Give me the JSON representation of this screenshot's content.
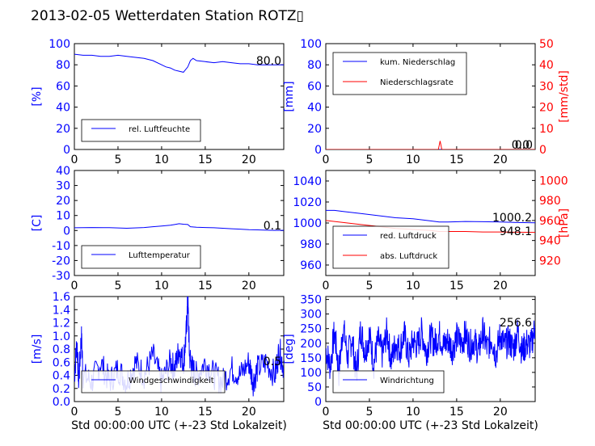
{
  "title": "2013-02-05 Wetterdaten Station ROTZ▯",
  "colors": {
    "blue": "#0000ff",
    "red": "#ff0000",
    "frame": "#000000"
  },
  "chart_data": [
    {
      "type": "line",
      "id": "humidity",
      "ylabel": "[%]",
      "xlim": [
        0,
        24
      ],
      "ylim": [
        0,
        100
      ],
      "xticks": [
        "0",
        "5",
        "10",
        "15",
        "20"
      ],
      "yticks": [
        "0",
        "20",
        "40",
        "60",
        "80",
        "100"
      ],
      "value_box": "80.0",
      "legend": "top-left-inside-bottom",
      "series": [
        {
          "name": "rel. Luftfeuchte",
          "color": "#0000ff",
          "x": [
            0,
            1,
            2,
            3,
            4,
            5,
            6,
            7,
            8,
            9,
            10,
            10.5,
            11,
            11.5,
            12,
            12.5,
            13,
            13.3,
            13.6,
            14,
            15,
            16,
            17,
            18,
            19,
            20,
            21,
            22,
            23,
            24
          ],
          "y": [
            90,
            89,
            89,
            88,
            88,
            89,
            88,
            87,
            86,
            84,
            80,
            78,
            77,
            75,
            74,
            73,
            78,
            84,
            86,
            84,
            83,
            82,
            83,
            82,
            81,
            81,
            80,
            80,
            80,
            80
          ]
        }
      ]
    },
    {
      "type": "line",
      "id": "precip",
      "ylabel": "[mm]",
      "y2label": "[mm/std]",
      "xlim": [
        0,
        24
      ],
      "ylim": [
        0,
        100
      ],
      "y2lim": [
        0,
        50
      ],
      "xticks": [
        "0",
        "5",
        "10",
        "15",
        "20"
      ],
      "yticks": [
        "0",
        "20",
        "40",
        "60",
        "80",
        "100"
      ],
      "y2ticks": [
        "0",
        "10",
        "20",
        "30",
        "40",
        "50"
      ],
      "value_box": "0.0",
      "value_box2": "0.0",
      "legend": "top-left",
      "series": [
        {
          "name": "kum. Niederschlag",
          "color": "#0000ff",
          "axis": "left",
          "x": [
            0,
            24
          ],
          "y": [
            0,
            0
          ]
        },
        {
          "name": "Niederschlagsrate",
          "color": "#ff0000",
          "axis": "right",
          "x": [
            0,
            12.9,
            13.0,
            13.1,
            13.2,
            13.3,
            24
          ],
          "y": [
            0,
            0,
            2,
            4,
            2,
            0,
            0
          ]
        }
      ]
    },
    {
      "type": "line",
      "id": "temperature",
      "ylabel": "[C]",
      "xlim": [
        0,
        24
      ],
      "ylim": [
        -30,
        40
      ],
      "xticks": [
        "0",
        "5",
        "10",
        "15",
        "20"
      ],
      "yticks": [
        "-30",
        "-20",
        "-10",
        "0",
        "10",
        "20",
        "30",
        "40"
      ],
      "value_box": "0.1",
      "legend": "bottom-left",
      "series": [
        {
          "name": "Lufttemperatur",
          "color": "#0000ff",
          "x": [
            0,
            2,
            4,
            6,
            8,
            9,
            10,
            11,
            11.5,
            12,
            12.5,
            13,
            13.3,
            14,
            15,
            16,
            17,
            18,
            19,
            20,
            21,
            22,
            23,
            24
          ],
          "y": [
            1.8,
            2.0,
            1.9,
            1.5,
            2.0,
            2.5,
            3.0,
            3.5,
            4.0,
            4.5,
            4.2,
            4.0,
            2.5,
            2.2,
            2.0,
            1.8,
            1.5,
            1.2,
            0.9,
            0.6,
            0.4,
            0.2,
            0.1,
            0.1
          ]
        }
      ]
    },
    {
      "type": "line",
      "id": "pressure",
      "ylabel": "",
      "y2label": "[hPa]",
      "xlim": [
        0,
        24
      ],
      "ylim": [
        950,
        1050
      ],
      "y2lim": [
        905,
        1010
      ],
      "xticks": [
        "0",
        "5",
        "10",
        "15",
        "20"
      ],
      "yticks": [
        "960",
        "980",
        "1000",
        "1020",
        "1040"
      ],
      "y2ticks": [
        "920",
        "940",
        "960",
        "980",
        "1000"
      ],
      "value_box": "1000.2",
      "value_box2": "948.1",
      "legend": "bottom-left",
      "series": [
        {
          "name": "red. Luftdruck",
          "color": "#0000ff",
          "axis": "left",
          "x": [
            0,
            1,
            2,
            4,
            6,
            8,
            10,
            12,
            13,
            14,
            16,
            18,
            20,
            22,
            24
          ],
          "y": [
            1012,
            1012,
            1011,
            1009,
            1007,
            1005,
            1004,
            1002,
            1001,
            1001,
            1001.5,
            1001.2,
            1001,
            1000.5,
            1000.2
          ]
        },
        {
          "name": "abs. Luftdruck",
          "color": "#ff0000",
          "axis": "right",
          "x": [
            0,
            2,
            4,
            6,
            8,
            10,
            12,
            13,
            14,
            16,
            18,
            20,
            22,
            24
          ],
          "y": [
            960,
            958,
            956,
            954,
            952,
            951,
            950,
            949,
            949,
            949,
            948.5,
            948.5,
            948.3,
            948.1
          ]
        }
      ]
    },
    {
      "type": "line",
      "id": "wind-speed",
      "ylabel": "[m/s]",
      "xlim": [
        0,
        24
      ],
      "ylim": [
        0,
        1.6
      ],
      "xticks": [
        "0",
        "5",
        "10",
        "15",
        "20"
      ],
      "yticks": [
        "0.0",
        "0.2",
        "0.4",
        "0.6",
        "0.8",
        "1.0",
        "1.2",
        "1.4",
        "1.6"
      ],
      "xlabel": "Std 00:00:00 UTC (+-23 Std Lokalzeit)",
      "value_box": "0.5",
      "legend": "bottom-left",
      "series": [
        {
          "name": "Windgeschwindigkeit",
          "color": "#0000ff",
          "x": [
            0,
            0.3,
            0.5,
            0.8,
            1,
            2,
            3,
            4,
            5,
            6,
            7,
            8,
            9,
            10,
            11,
            11.5,
            12,
            12.5,
            12.8,
            13,
            13.2,
            13.5,
            14,
            15,
            16,
            17,
            18,
            19,
            20,
            20.5,
            21,
            22,
            23,
            23.5,
            24
          ],
          "y": [
            0.4,
            0.9,
            0.3,
            1.0,
            0.4,
            0.3,
            0.6,
            0.3,
            0.5,
            0.3,
            0.6,
            0.4,
            0.7,
            0.3,
            0.6,
            0.5,
            0.8,
            0.6,
            1.0,
            1.55,
            0.7,
            0.5,
            0.4,
            0.6,
            0.4,
            0.3,
            0.5,
            0.4,
            0.6,
            0.3,
            0.5,
            0.6,
            0.4,
            0.8,
            0.5
          ]
        }
      ]
    },
    {
      "type": "line",
      "id": "wind-direction",
      "ylabel": "[deg]",
      "xlim": [
        0,
        24
      ],
      "ylim": [
        0,
        360
      ],
      "xticks": [
        "0",
        "5",
        "10",
        "15",
        "20"
      ],
      "yticks": [
        "0",
        "50",
        "100",
        "150",
        "200",
        "250",
        "300",
        "350"
      ],
      "xlabel": "Std 00:00:00 UTC (+-23 Std Lokalzeit)",
      "value_box": "256.6",
      "legend": "bottom-left",
      "series": [
        {
          "name": "Windrichtung",
          "color": "#0000ff",
          "x": [
            0,
            0.5,
            1,
            1.5,
            2,
            2.5,
            3,
            3.5,
            4,
            4.5,
            5,
            5.5,
            6,
            6.5,
            7,
            7.5,
            8,
            8.5,
            9,
            9.5,
            10,
            10.5,
            11,
            11.5,
            12,
            12.5,
            13,
            13.5,
            14,
            14.5,
            15,
            15.5,
            16,
            16.5,
            17,
            17.5,
            18,
            18.5,
            19,
            19.5,
            20,
            20.5,
            21,
            21.5,
            22,
            22.5,
            23,
            23.5,
            24
          ],
          "y": [
            180,
            120,
            240,
            100,
            260,
            150,
            220,
            90,
            250,
            170,
            230,
            130,
            210,
            160,
            240,
            140,
            200,
            180,
            230,
            150,
            210,
            190,
            240,
            170,
            220,
            200,
            230,
            190,
            210,
            180,
            220,
            200,
            230,
            190,
            210,
            170,
            240,
            180,
            220,
            160,
            230,
            190,
            210,
            180,
            240,
            170,
            200,
            190,
            256.6
          ]
        }
      ]
    }
  ]
}
